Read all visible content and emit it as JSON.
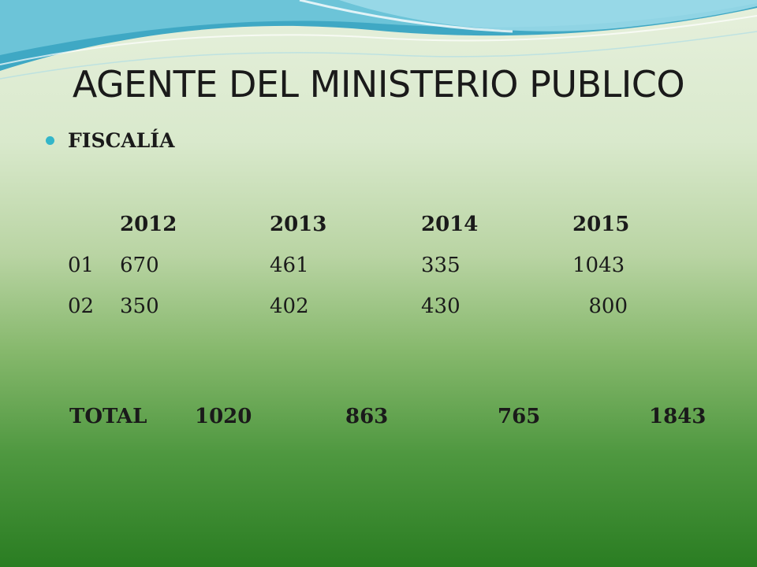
{
  "slide": {
    "title": "AGENTE DEL MINISTERIO PUBLICO",
    "bullet": "FISCALÍA"
  },
  "table": {
    "years": [
      "2012",
      "2013",
      "2014",
      "2015"
    ],
    "rows": [
      {
        "label": "01",
        "values": [
          "670",
          "461",
          "335",
          "1043"
        ]
      },
      {
        "label": "02",
        "values": [
          "350",
          "402",
          "430",
          "800"
        ]
      }
    ],
    "total": {
      "label": "TOTAL",
      "values": [
        "1020",
        "863",
        "765",
        "1843"
      ]
    }
  },
  "colors": {
    "accent": "#33b6c9",
    "wave_dark": "#3fa8c4",
    "wave_light": "#8fd6e6",
    "bg_top": "#e6f0dc",
    "bg_bottom": "#2a7d22"
  }
}
